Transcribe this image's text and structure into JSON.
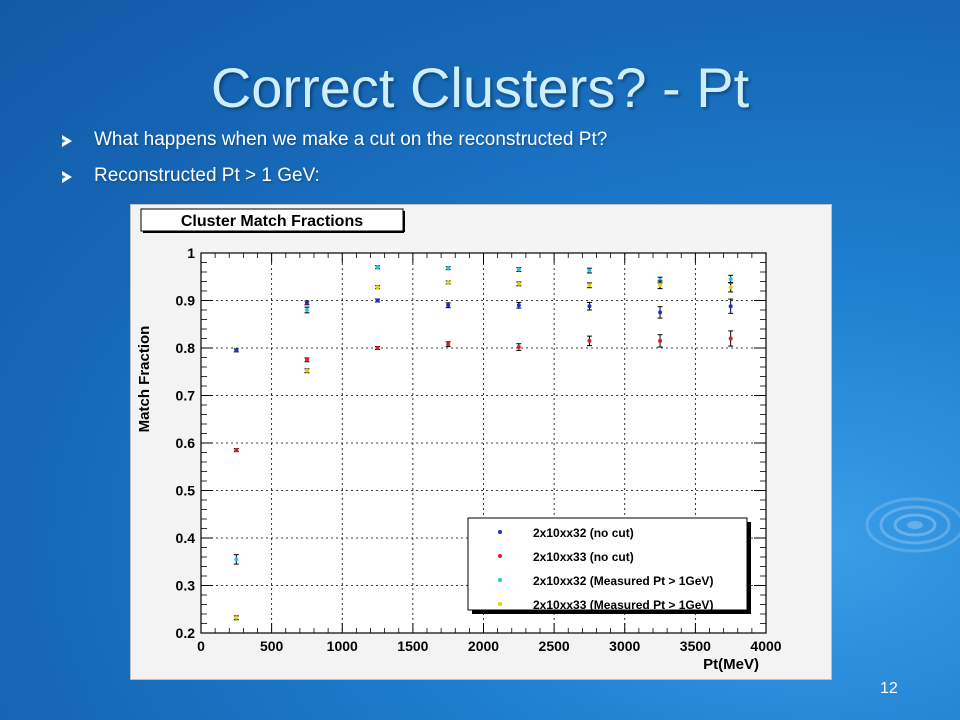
{
  "slide": {
    "title": "Correct Clusters? - Pt",
    "bullets": [
      "What happens when we make a cut on the reconstructed Pt?",
      "Reconstructed Pt > 1 GeV:"
    ],
    "page_number": "12"
  },
  "chart_data": {
    "type": "scatter",
    "title": "Cluster Match Fractions",
    "xlabel": "Pt(MeV)",
    "ylabel": "Match Fraction",
    "xlim": [
      0,
      4000
    ],
    "ylim": [
      0.2,
      1.0
    ],
    "x_ticks": [
      "0",
      "500",
      "1000",
      "1500",
      "2000",
      "2500",
      "3000",
      "3500",
      "4000"
    ],
    "y_ticks": [
      "0.2",
      "0.3",
      "0.4",
      "0.5",
      "0.6",
      "0.7",
      "0.8",
      "0.9",
      "1"
    ],
    "grid": true,
    "legend_position": "bottom-right",
    "x": [
      250,
      750,
      1250,
      1750,
      2250,
      2750,
      3250,
      3750
    ],
    "series": [
      {
        "name": "2x10xx32 (no cut)",
        "color": "#1f2bd6",
        "values": [
          0.795,
          0.895,
          0.9,
          0.89,
          0.89,
          0.888,
          0.875,
          0.888
        ],
        "errors": [
          0.002,
          0.004,
          0.003,
          0.005,
          0.006,
          0.008,
          0.012,
          0.015
        ]
      },
      {
        "name": "2x10xx33 (no cut)",
        "color": "#e02020",
        "values": [
          0.585,
          0.775,
          0.8,
          0.808,
          0.802,
          0.815,
          0.815,
          0.82
        ],
        "errors": [
          0.002,
          0.004,
          0.003,
          0.005,
          0.007,
          0.01,
          0.013,
          0.016
        ]
      },
      {
        "name": "2x10xx32 (Measured Pt > 1GeV)",
        "color": "#20c8e0",
        "values": [
          0.355,
          0.88,
          0.97,
          0.968,
          0.965,
          0.963,
          0.943,
          0.945
        ],
        "errors": [
          0.01,
          0.006,
          0.002,
          0.003,
          0.004,
          0.005,
          0.006,
          0.008
        ]
      },
      {
        "name": "2x10xx33 (Measured Pt > 1GeV)",
        "color": "#e6d200",
        "values": [
          0.232,
          0.752,
          0.928,
          0.938,
          0.935,
          0.932,
          0.933,
          0.928
        ],
        "errors": [
          0.004,
          0.004,
          0.003,
          0.003,
          0.004,
          0.005,
          0.008,
          0.01
        ]
      }
    ]
  }
}
